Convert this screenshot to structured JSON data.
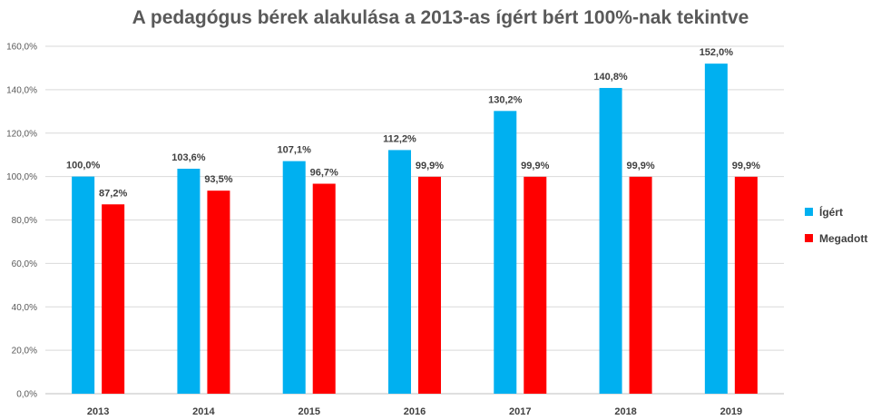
{
  "chart_data": {
    "type": "bar",
    "title": "A pedagógus bérek alakulása a 2013-as ígért bért 100%-nak tekintve",
    "xlabel": "",
    "ylabel": "",
    "categories": [
      "2013",
      "2014",
      "2015",
      "2016",
      "2017",
      "2018",
      "2019"
    ],
    "series": [
      {
        "name": "Ígért",
        "color": "#00B0F0",
        "values": [
          100.0,
          103.6,
          107.1,
          112.2,
          130.2,
          140.8,
          152.0
        ],
        "labels": [
          "100,0%",
          "103,6%",
          "107,1%",
          "112,2%",
          "130,2%",
          "140,8%",
          "152,0%"
        ]
      },
      {
        "name": "Megadott",
        "color": "#FF0000",
        "values": [
          87.2,
          93.5,
          96.7,
          99.9,
          99.9,
          99.9,
          99.9
        ],
        "labels": [
          "87,2%",
          "93,5%",
          "96,7%",
          "99,9%",
          "99,9%",
          "99,9%",
          "99,9%"
        ]
      }
    ],
    "ylim": [
      0,
      160
    ],
    "yticks": [
      0,
      20,
      40,
      60,
      80,
      100,
      120,
      140,
      160
    ],
    "ytick_labels": [
      "0,0%",
      "20,0%",
      "40,0%",
      "60,0%",
      "80,0%",
      "100,0%",
      "120,0%",
      "140,0%",
      "160,0%"
    ],
    "grid": true,
    "legend_position": "right"
  }
}
